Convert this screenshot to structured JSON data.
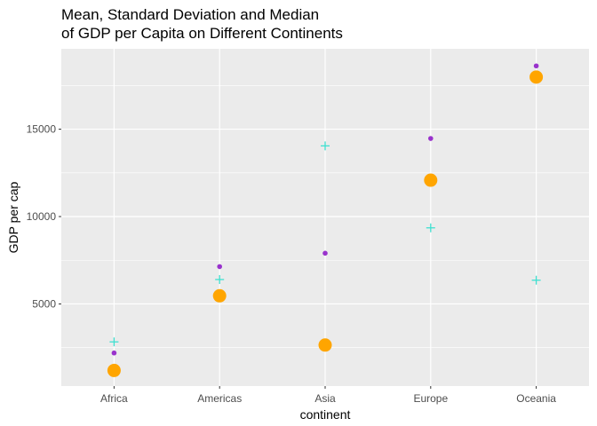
{
  "chart_data": {
    "type": "scatter",
    "title_lines": [
      "Mean, Standard Deviation and Median",
      "of GDP per Capita on Different Continents"
    ],
    "xlabel": "continent",
    "ylabel": "GDP per cap",
    "categories": [
      "Africa",
      "Americas",
      "Asia",
      "Europe",
      "Oceania"
    ],
    "ylim": [
      300,
      19600
    ],
    "yticks": [
      5000,
      10000,
      15000
    ],
    "ytick_labels": [
      "5000",
      "10000",
      "15000"
    ],
    "grid": true,
    "colors": {
      "panel": "#ebebeb",
      "grid": "#ffffff",
      "mean": "#9932cc",
      "sd": "#40e0d0",
      "median": "#ffa500"
    },
    "series": [
      {
        "key": "mean",
        "marker": "dot",
        "values": [
          2194,
          7136,
          7902,
          14469,
          18622
        ]
      },
      {
        "key": "sd",
        "marker": "plus",
        "values": [
          2828,
          6397,
          14045,
          9355,
          6359
        ]
      },
      {
        "key": "median",
        "marker": "big-dot",
        "values": [
          1192,
          5466,
          2647,
          12082,
          17983
        ]
      }
    ]
  }
}
